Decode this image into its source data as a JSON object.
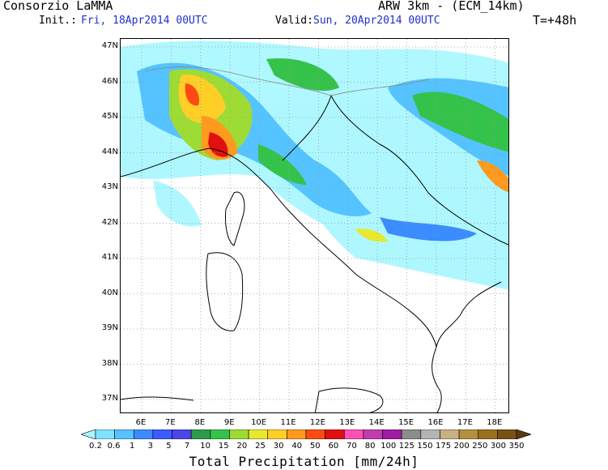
{
  "header": {
    "org": "Consorzio LaMMA",
    "model": "ARW 3km - (ECM_14km)",
    "init_label": "Init.:",
    "init_value": "Fri, 18Apr2014 00UTC",
    "valid_label": "Valid:",
    "valid_value": "Sun, 20Apr2014 00UTC",
    "lead_time": "T=+48h"
  },
  "map": {
    "lat_ticks": [
      "47N",
      "46N",
      "45N",
      "44N",
      "43N",
      "42N",
      "41N",
      "40N",
      "39N",
      "38N",
      "37N"
    ],
    "lon_ticks": [
      "6E",
      "7E",
      "8E",
      "9E",
      "10E",
      "11E",
      "12E",
      "13E",
      "14E",
      "15E",
      "16E",
      "17E",
      "18E"
    ],
    "coastline_color": "#000000",
    "grid_style": "dotted"
  },
  "legend": {
    "title": "Total Precipitation [mm/24h]",
    "levels": [
      "0.2",
      "0.6",
      "1",
      "3",
      "5",
      "7",
      "10",
      "15",
      "20",
      "25",
      "30",
      "40",
      "50",
      "60",
      "70",
      "80",
      "100",
      "125",
      "150",
      "175",
      "200",
      "250",
      "300",
      "350"
    ],
    "colors": [
      "#a6f7ff",
      "#7fe3ff",
      "#55c3ff",
      "#3a8cff",
      "#3c5cff",
      "#4b46e8",
      "#2e9a4a",
      "#35c24a",
      "#9edc35",
      "#e8e82e",
      "#ffcf28",
      "#ff9a1e",
      "#ff4a14",
      "#e01010",
      "#ff50b4",
      "#c23cb0",
      "#a01ca0",
      "#8c8c8c",
      "#b4b4b4",
      "#c8b080",
      "#b49040",
      "#9a7020",
      "#7a5014",
      "#5a3a10"
    ]
  }
}
